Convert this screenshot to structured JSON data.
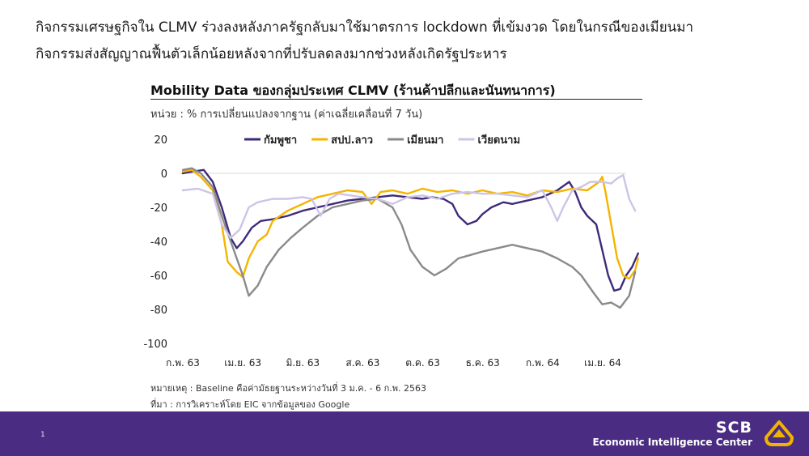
{
  "headline": {
    "line1": "กิจกรรมเศรษฐกิจใน CLMV ร่วงลงหลังภาครัฐกลับมาใช้มาตรการ lockdown ที่เข้มงวด โดยในกรณีของเมียนมา",
    "line2": "กิจกรรมส่งสัญญาณฟื้นตัวเล็กน้อยหลังจากที่ปรับลดลงมากช่วงหลังเกิดรัฐประหาร"
  },
  "footer": {
    "page_number": "1",
    "brand_name": "SCB",
    "brand_unit": "Economic Intelligence Center"
  },
  "chart_data": {
    "type": "line",
    "title": "Mobility Data ของกลุ่มประเทศ CLMV (ร้านค้าปลีกและนันทนาการ)",
    "subtitle": "หน่วย : % การเปลี่ยนแปลงจากฐาน (ค่าเฉลี่ยเคลื่อนที่ 7 วัน)",
    "xlabel": "",
    "ylabel": "",
    "ylim": [
      -100,
      20
    ],
    "yticks": [
      20,
      0,
      -20,
      -40,
      -60,
      -80,
      -100
    ],
    "x_tick_labels": [
      "ก.พ. 63",
      "เม.ย. 63",
      "มิ.ย. 63",
      "ส.ค. 63",
      "ต.ค. 63",
      "ธ.ค. 63",
      "ก.พ. 64",
      "เม.ย. 64"
    ],
    "x_range": [
      0,
      14.8
    ],
    "legend_position": "top",
    "grid": false,
    "series": [
      {
        "name": "กัมพูชา",
        "color": "#3f2a7a",
        "points": [
          [
            0,
            0
          ],
          [
            0.3,
            1
          ],
          [
            0.7,
            2
          ],
          [
            1.0,
            -5
          ],
          [
            1.3,
            -20
          ],
          [
            1.6,
            -38
          ],
          [
            1.8,
            -44
          ],
          [
            2.0,
            -40
          ],
          [
            2.3,
            -32
          ],
          [
            2.6,
            -28
          ],
          [
            3.0,
            -27
          ],
          [
            3.5,
            -25
          ],
          [
            4.0,
            -22
          ],
          [
            4.5,
            -20
          ],
          [
            5.0,
            -18
          ],
          [
            5.5,
            -16
          ],
          [
            6.0,
            -15
          ],
          [
            6.5,
            -14
          ],
          [
            7.0,
            -13
          ],
          [
            7.5,
            -14
          ],
          [
            8.0,
            -15
          ],
          [
            8.3,
            -14
          ],
          [
            8.7,
            -15
          ],
          [
            9.0,
            -18
          ],
          [
            9.2,
            -25
          ],
          [
            9.5,
            -30
          ],
          [
            9.8,
            -28
          ],
          [
            10.0,
            -24
          ],
          [
            10.3,
            -20
          ],
          [
            10.7,
            -17
          ],
          [
            11.0,
            -18
          ],
          [
            11.5,
            -16
          ],
          [
            12.0,
            -14
          ],
          [
            12.5,
            -10
          ],
          [
            12.9,
            -5
          ],
          [
            13.1,
            -11
          ],
          [
            13.3,
            -20
          ],
          [
            13.5,
            -25
          ],
          [
            13.8,
            -30
          ],
          [
            14.0,
            -45
          ],
          [
            14.2,
            -60
          ],
          [
            14.4,
            -69
          ],
          [
            14.6,
            -68
          ],
          [
            14.8,
            -60
          ],
          [
            15.0,
            -55
          ],
          [
            15.2,
            -47
          ]
        ]
      },
      {
        "name": "สปป.ลาว",
        "color": "#f5b400",
        "points": [
          [
            0,
            1
          ],
          [
            0.3,
            2
          ],
          [
            0.6,
            -2
          ],
          [
            1.0,
            -10
          ],
          [
            1.3,
            -30
          ],
          [
            1.5,
            -52
          ],
          [
            1.8,
            -58
          ],
          [
            2.0,
            -61
          ],
          [
            2.2,
            -50
          ],
          [
            2.5,
            -40
          ],
          [
            2.8,
            -36
          ],
          [
            3.0,
            -28
          ],
          [
            3.5,
            -22
          ],
          [
            4.0,
            -18
          ],
          [
            4.5,
            -14
          ],
          [
            5.0,
            -12
          ],
          [
            5.5,
            -10
          ],
          [
            6.0,
            -11
          ],
          [
            6.3,
            -18
          ],
          [
            6.6,
            -11
          ],
          [
            7.0,
            -10
          ],
          [
            7.5,
            -12
          ],
          [
            8.0,
            -9
          ],
          [
            8.5,
            -11
          ],
          [
            9.0,
            -10
          ],
          [
            9.5,
            -12
          ],
          [
            10.0,
            -10
          ],
          [
            10.5,
            -12
          ],
          [
            11.0,
            -11
          ],
          [
            11.5,
            -13
          ],
          [
            12.0,
            -10
          ],
          [
            12.5,
            -11
          ],
          [
            13.0,
            -9
          ],
          [
            13.5,
            -10
          ],
          [
            13.9,
            -5
          ],
          [
            14.0,
            -2
          ],
          [
            14.1,
            -10
          ],
          [
            14.3,
            -30
          ],
          [
            14.5,
            -50
          ],
          [
            14.7,
            -60
          ],
          [
            14.9,
            -62
          ],
          [
            15.1,
            -57
          ],
          [
            15.2,
            -50
          ]
        ]
      },
      {
        "name": "เมียนมา",
        "color": "#8a8a8a",
        "points": [
          [
            0,
            2
          ],
          [
            0.3,
            3
          ],
          [
            0.6,
            0
          ],
          [
            1.0,
            -8
          ],
          [
            1.3,
            -25
          ],
          [
            1.7,
            -45
          ],
          [
            2.0,
            -60
          ],
          [
            2.2,
            -72
          ],
          [
            2.5,
            -66
          ],
          [
            2.8,
            -55
          ],
          [
            3.2,
            -45
          ],
          [
            3.6,
            -38
          ],
          [
            4.0,
            -32
          ],
          [
            4.5,
            -25
          ],
          [
            5.0,
            -20
          ],
          [
            5.5,
            -18
          ],
          [
            6.0,
            -16
          ],
          [
            6.5,
            -15
          ],
          [
            7.0,
            -20
          ],
          [
            7.3,
            -30
          ],
          [
            7.6,
            -45
          ],
          [
            8.0,
            -55
          ],
          [
            8.4,
            -60
          ],
          [
            8.8,
            -56
          ],
          [
            9.2,
            -50
          ],
          [
            9.6,
            -48
          ],
          [
            10.0,
            -46
          ],
          [
            10.5,
            -44
          ],
          [
            11.0,
            -42
          ],
          [
            11.5,
            -44
          ],
          [
            12.0,
            -46
          ],
          [
            12.5,
            -50
          ],
          [
            13.0,
            -55
          ],
          [
            13.3,
            -60
          ],
          [
            13.7,
            -70
          ],
          [
            14.0,
            -77
          ],
          [
            14.3,
            -76
          ],
          [
            14.6,
            -79
          ],
          [
            14.9,
            -72
          ],
          [
            15.1,
            -58
          ]
        ]
      },
      {
        "name": "เวียดนาม",
        "color": "#cdc4e6",
        "points": [
          [
            0,
            -10
          ],
          [
            0.5,
            -9
          ],
          [
            1.0,
            -12
          ],
          [
            1.3,
            -30
          ],
          [
            1.6,
            -38
          ],
          [
            1.9,
            -33
          ],
          [
            2.2,
            -20
          ],
          [
            2.5,
            -17
          ],
          [
            3.0,
            -15
          ],
          [
            3.5,
            -15
          ],
          [
            4.0,
            -14
          ],
          [
            4.3,
            -15
          ],
          [
            4.6,
            -25
          ],
          [
            4.9,
            -15
          ],
          [
            5.2,
            -12
          ],
          [
            5.6,
            -13
          ],
          [
            6.0,
            -14
          ],
          [
            6.5,
            -15
          ],
          [
            7.0,
            -18
          ],
          [
            7.5,
            -14
          ],
          [
            8.0,
            -13
          ],
          [
            8.5,
            -15
          ],
          [
            9.0,
            -12
          ],
          [
            9.5,
            -11
          ],
          [
            10.0,
            -12
          ],
          [
            10.5,
            -12
          ],
          [
            11.0,
            -13
          ],
          [
            11.5,
            -14
          ],
          [
            12.0,
            -10
          ],
          [
            12.3,
            -20
          ],
          [
            12.5,
            -28
          ],
          [
            12.7,
            -20
          ],
          [
            13.0,
            -10
          ],
          [
            13.3,
            -8
          ],
          [
            13.6,
            -5
          ],
          [
            14.0,
            -5
          ],
          [
            14.3,
            -6
          ],
          [
            14.5,
            -3
          ],
          [
            14.7,
            -1
          ],
          [
            14.9,
            -15
          ],
          [
            15.1,
            -22
          ]
        ]
      }
    ]
  },
  "notes": {
    "remark": "หมายเหตุ : Baseline คือค่ามัธยฐานระหว่างวันที่ 3 ม.ค. - 6 ก.พ. 2563",
    "source": "ที่มา : การวิเคราะห์โดย EIC จากข้อมูลของ Google"
  }
}
